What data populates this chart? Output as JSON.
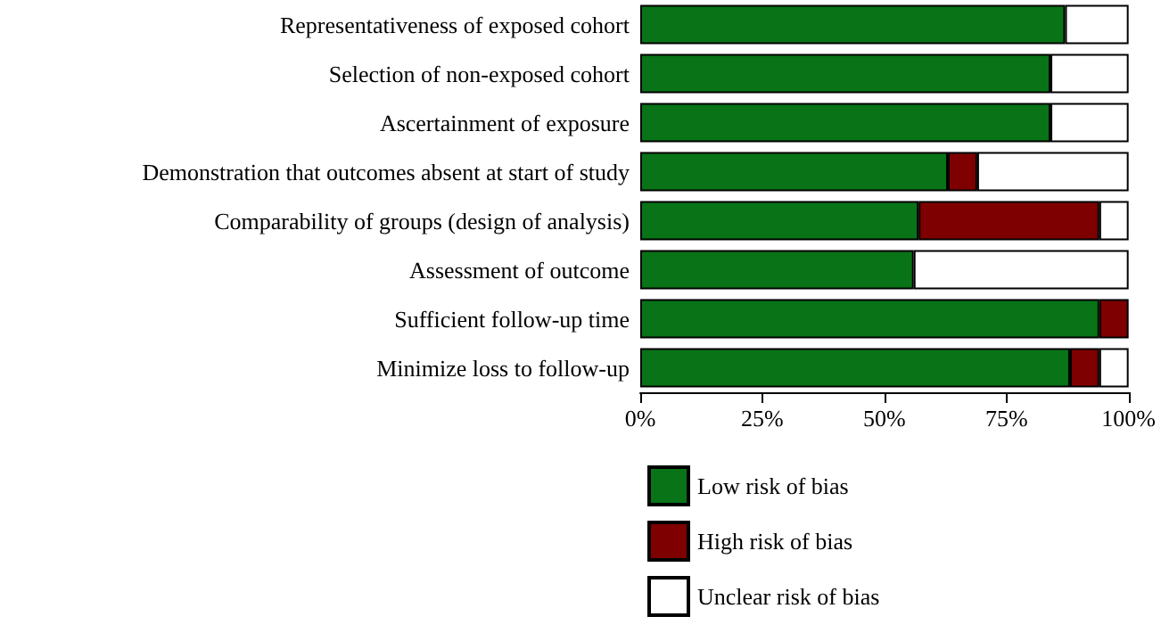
{
  "chart_data": {
    "type": "bar",
    "orientation": "horizontal",
    "stacked": true,
    "categories": [
      "Representativeness of exposed cohort",
      "Selection of non-exposed cohort",
      "Ascertainment of exposure",
      "Demonstration that outcomes absent at start of study",
      "Comparability of groups (design of analysis)",
      "Assessment of outcome",
      "Sufficient follow-up time",
      "Minimize loss to follow-up"
    ],
    "series": [
      {
        "name": "Low risk of bias",
        "color": "#087317",
        "values": [
          87,
          84,
          84,
          63,
          57,
          56,
          94,
          88
        ]
      },
      {
        "name": "High risk of bias",
        "color": "#7f0000",
        "values": [
          0,
          0,
          0,
          6,
          37,
          0,
          6,
          6
        ]
      },
      {
        "name": "Unclear risk of bias",
        "color": "#ffffff",
        "values": [
          13,
          16,
          16,
          31,
          6,
          44,
          0,
          6
        ]
      }
    ],
    "xlim": [
      0,
      100
    ],
    "xticks": [
      {
        "value": 0,
        "label": "0%"
      },
      {
        "value": 25,
        "label": "25%"
      },
      {
        "value": 50,
        "label": "50%"
      },
      {
        "value": 75,
        "label": "75%"
      },
      {
        "value": 100,
        "label": "100%"
      }
    ],
    "grid": false,
    "legend": "bottom"
  }
}
